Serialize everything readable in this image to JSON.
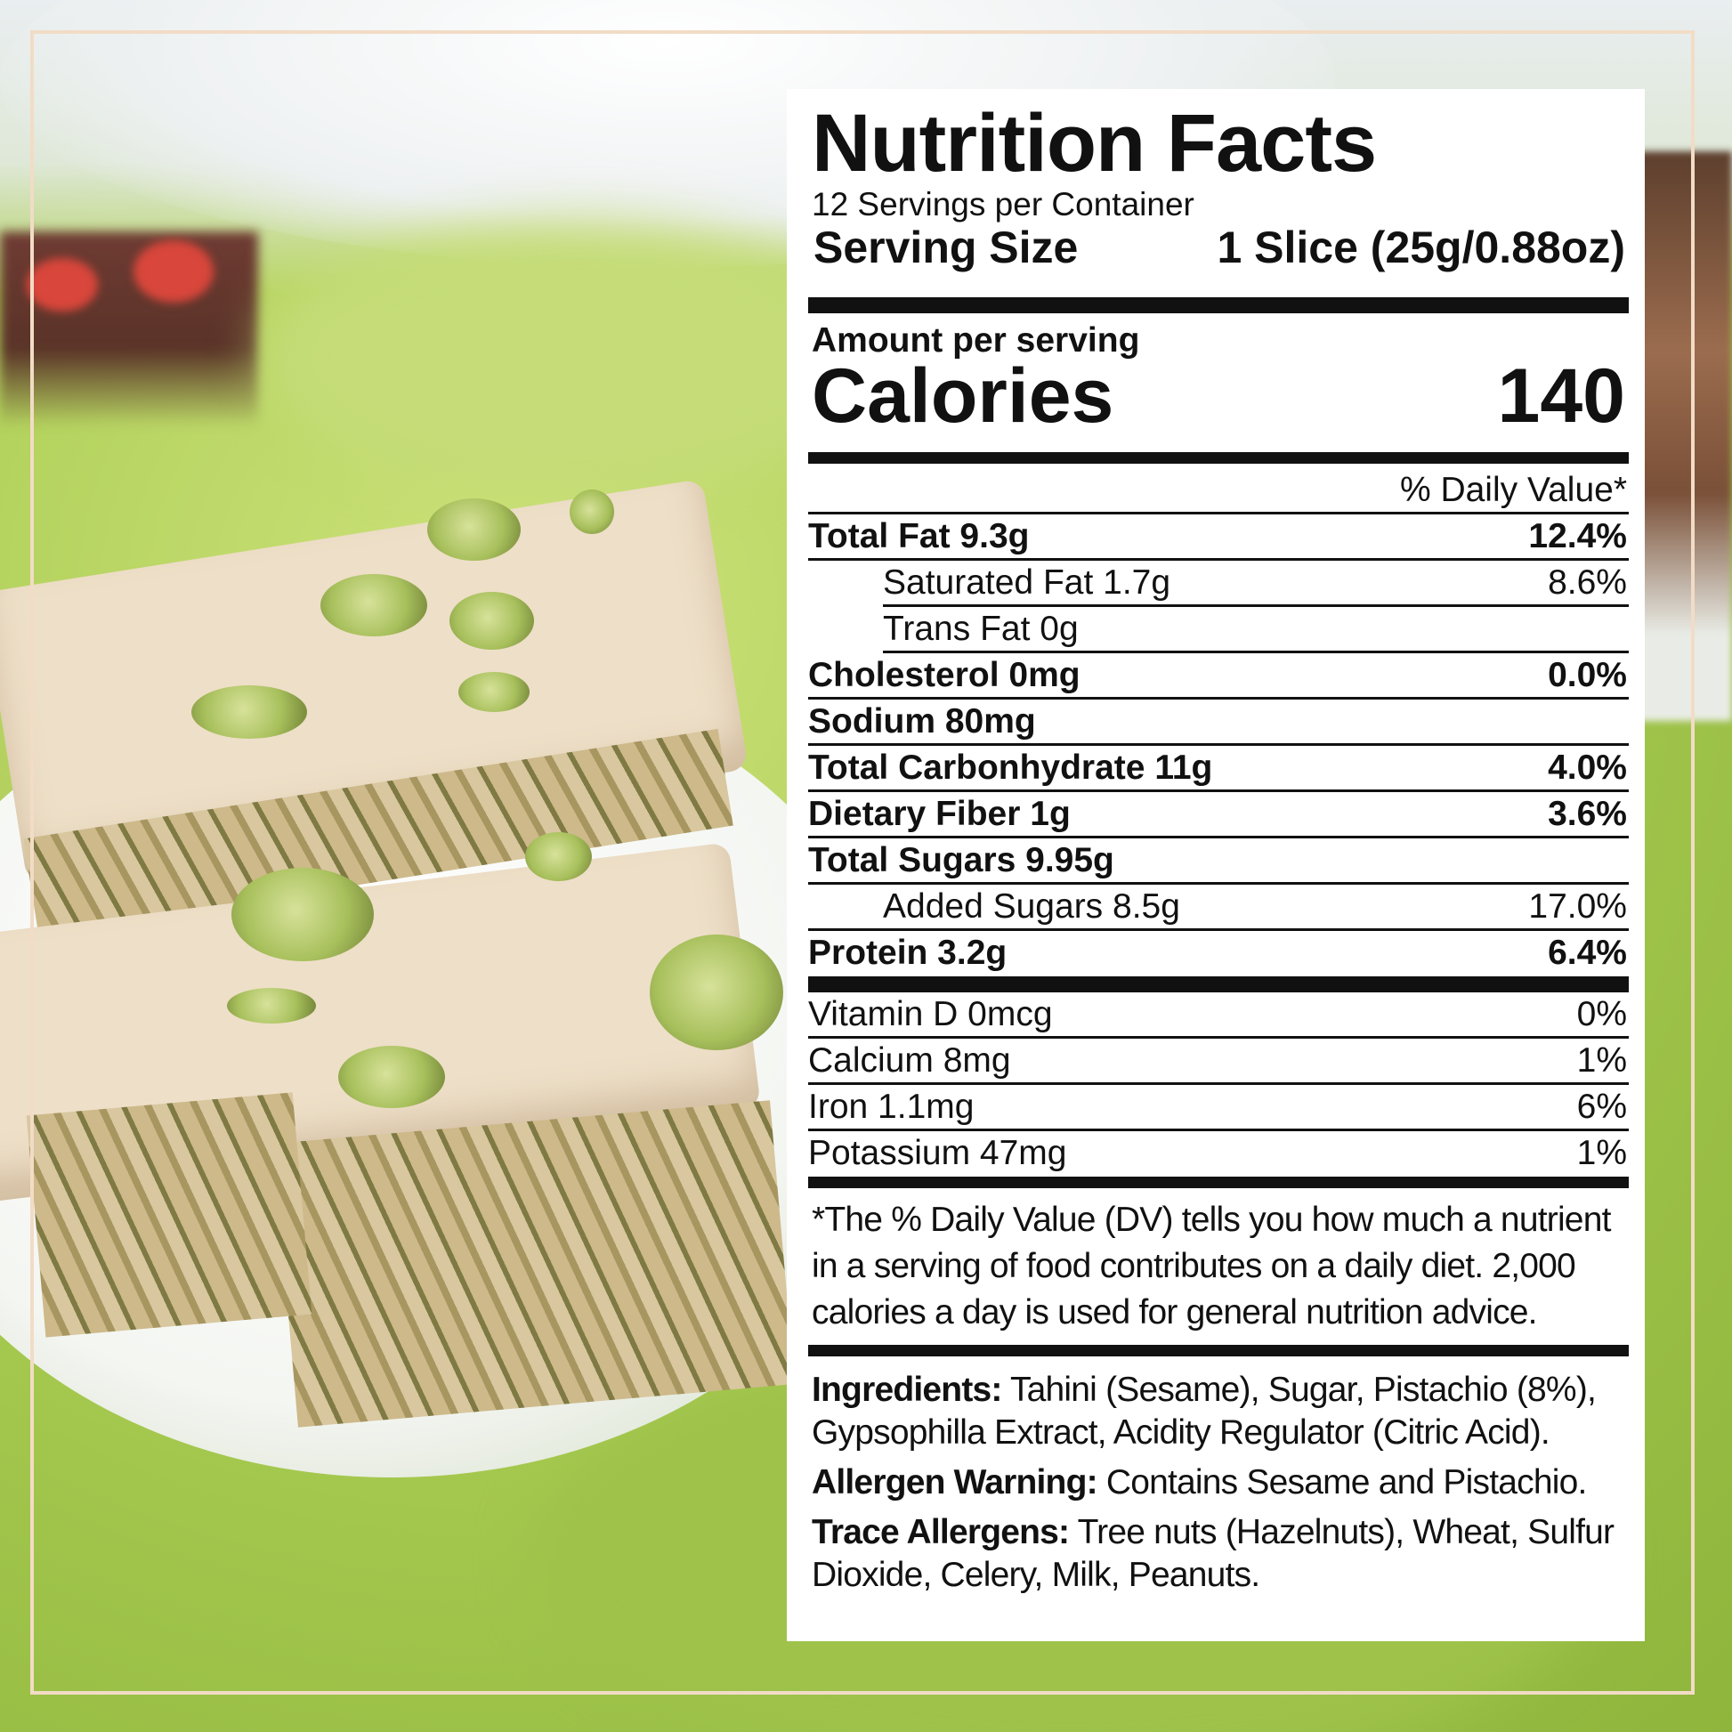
{
  "label": {
    "title": "Nutrition Facts",
    "servings_per_container": "12 Servings per Container",
    "serving_size_label": "Serving Size",
    "serving_size_value": "1 Slice (25g/0.88oz)",
    "amount_per_serving": "Amount per serving",
    "calories_label": "Calories",
    "calories_value": "140",
    "daily_value_header": "% Daily Value*",
    "nutrients": [
      {
        "name": "Total Fat 9.3g",
        "dv": "12.4%"
      },
      {
        "name": "Saturated Fat 1.7g",
        "dv": "8.6%"
      },
      {
        "name": "Trans Fat 0g",
        "dv": ""
      },
      {
        "name": "Cholesterol 0mg",
        "dv": "0.0%"
      },
      {
        "name": "Sodium 80mg",
        "dv": ""
      },
      {
        "name": "Total Carbonhydrate 11g",
        "dv": "4.0%"
      },
      {
        "name": "Dietary Fiber 1g",
        "dv": "3.6%"
      },
      {
        "name": "Total Sugars 9.95g",
        "dv": ""
      },
      {
        "name": "Added Sugars 8.5g",
        "dv": "17.0%"
      },
      {
        "name": "Protein 3.2g",
        "dv": "6.4%"
      }
    ],
    "vitamins": [
      {
        "name": "Vitamin D 0mcg",
        "dv": "0%"
      },
      {
        "name": "Calcium 8mg",
        "dv": "1%"
      },
      {
        "name": "Iron 1.1mg",
        "dv": "6%"
      },
      {
        "name": "Potassium 47mg",
        "dv": "1%"
      }
    ],
    "footnote": "*The % Daily Value (DV) tells you how much a nutrient in a serving of food contributes on a daily diet. 2,000 calories a day is used for general nutrition advice.",
    "ingredients_label": "Ingredients:",
    "ingredients_text": "Tahini (Sesame), Sugar, Pistachio (8%), Gypsophilla Extract, Acidity Regulator (Citric Acid).",
    "allergen_label": "Allergen Warning:",
    "allergen_text": "Contains Sesame and Pistachio.",
    "trace_label": "Trace Allergens:",
    "trace_text": "Tree nuts (Hazelnuts), Wheat, Sulfur Dioxide, Celery, Milk, Peanuts."
  },
  "colors": {
    "frame": "#f2dcc6",
    "background_green": "#a9cc52",
    "halva": "#eedfc8",
    "label_text": "#111111"
  }
}
